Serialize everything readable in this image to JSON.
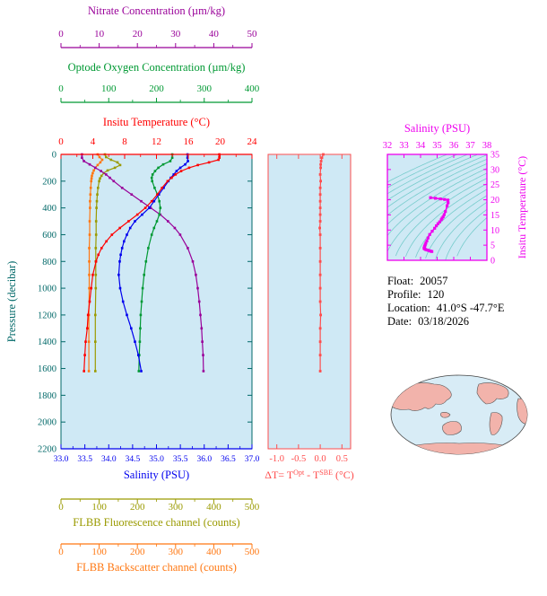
{
  "info": {
    "rows": [
      {
        "label": "Float:",
        "value": "20057"
      },
      {
        "label": "Profile:",
        "value": "120"
      },
      {
        "label": "Location:",
        "value": "41.0°S -47.7°E"
      },
      {
        "label": "Date:",
        "value": "03/18/2026"
      }
    ]
  },
  "colors": {
    "plot_background": "#cfe9f5",
    "pressure_axis": "#006868",
    "nitrate": "#990099",
    "oxygen": "#009933",
    "temperature": "#ff0000",
    "salinity": "#0000ee",
    "fluorescence": "#9a9a00",
    "backscatter": "#ff7711",
    "delta_t": "#ff4d4d",
    "ts_magenta": "#ee00ee",
    "ts_contours": "#77cccc",
    "map_land": "#f2b3ab",
    "map_ocean": "#d8ecf6"
  },
  "chart_data": [
    {
      "id": "main-profiles",
      "type": "line",
      "ylabel": "Pressure (decibar)",
      "ylim": [
        0,
        2200
      ],
      "ytick_values": [
        0,
        200,
        400,
        600,
        800,
        1000,
        1200,
        1400,
        1600,
        1800,
        2000,
        2200
      ],
      "x_axes": [
        {
          "id": "temperature",
          "label": "Insitu Temperature (°C)",
          "lim": [
            0,
            24
          ],
          "tick_values": [
            0,
            4,
            8,
            12,
            16,
            20,
            24
          ],
          "tick_labels": [
            "0",
            "4",
            "8",
            "12",
            "16",
            "20",
            "24"
          ]
        },
        {
          "id": "oxygen",
          "label": "Optode Oxygen Concentration (µm/kg)",
          "lim": [
            0,
            400
          ],
          "tick_values": [
            0,
            100,
            200,
            300,
            400
          ],
          "tick_labels": [
            "0",
            "100",
            "200",
            "300",
            "400"
          ]
        },
        {
          "id": "nitrate",
          "label": "Nitrate Concentration (µm/kg)",
          "lim": [
            0,
            50
          ],
          "tick_values": [
            0,
            10,
            20,
            30,
            40,
            50
          ],
          "tick_labels": [
            "0",
            "10",
            "20",
            "30",
            "40",
            "50"
          ]
        },
        {
          "id": "salinity",
          "label": "Salinity (PSU)",
          "lim": [
            33,
            37
          ],
          "tick_values": [
            33,
            33.5,
            34,
            34.5,
            35,
            35.5,
            36,
            36.5,
            37
          ],
          "tick_labels": [
            "33.0",
            "33.5",
            "34.0",
            "34.5",
            "35.0",
            "35.5",
            "36.0",
            "36.5",
            "37.0"
          ]
        },
        {
          "id": "fluorescence",
          "label": "FLBB Fluorescence channel (counts)",
          "lim": [
            0,
            500
          ],
          "tick_values": [
            0,
            100,
            200,
            300,
            400,
            500
          ],
          "tick_labels": [
            "0",
            "100",
            "200",
            "300",
            "400",
            "500"
          ]
        },
        {
          "id": "backscatter",
          "label": "FLBB Backscatter channel (counts)",
          "lim": [
            0,
            500
          ],
          "tick_values": [
            0,
            100,
            200,
            300,
            400,
            500
          ],
          "tick_labels": [
            "0",
            "100",
            "200",
            "300",
            "400",
            "500"
          ]
        }
      ],
      "series": [
        {
          "axis": "temperature",
          "points": [
            [
              0,
              19.9
            ],
            [
              20,
              19.9
            ],
            [
              40,
              19.8
            ],
            [
              60,
              18.6
            ],
            [
              80,
              17.2
            ],
            [
              100,
              16.1
            ],
            [
              125,
              15.1
            ],
            [
              150,
              14.4
            ],
            [
              175,
              13.9
            ],
            [
              200,
              13.4
            ],
            [
              250,
              12.7
            ],
            [
              300,
              12.1
            ],
            [
              350,
              11.4
            ],
            [
              400,
              10.6
            ],
            [
              450,
              9.6
            ],
            [
              500,
              8.5
            ],
            [
              550,
              7.4
            ],
            [
              600,
              6.4
            ],
            [
              650,
              5.7
            ],
            [
              700,
              5.1
            ],
            [
              750,
              4.7
            ],
            [
              800,
              4.4
            ],
            [
              900,
              4.0
            ],
            [
              1000,
              3.8
            ],
            [
              1100,
              3.6
            ],
            [
              1200,
              3.4
            ],
            [
              1300,
              3.3
            ],
            [
              1400,
              3.1
            ],
            [
              1500,
              3.0
            ],
            [
              1620,
              2.9
            ]
          ]
        },
        {
          "axis": "oxygen",
          "points": [
            [
              0,
              233
            ],
            [
              25,
              233
            ],
            [
              50,
              229
            ],
            [
              75,
              214
            ],
            [
              100,
              204
            ],
            [
              125,
              197
            ],
            [
              150,
              192
            ],
            [
              175,
              190
            ],
            [
              200,
              191
            ],
            [
              250,
              196
            ],
            [
              300,
              202
            ],
            [
              350,
              206
            ],
            [
              400,
              208
            ],
            [
              450,
              206
            ],
            [
              500,
              201
            ],
            [
              550,
              195
            ],
            [
              600,
              190
            ],
            [
              700,
              183
            ],
            [
              800,
              178
            ],
            [
              900,
              174
            ],
            [
              1000,
              171
            ],
            [
              1100,
              169
            ],
            [
              1200,
              167
            ],
            [
              1300,
              166
            ],
            [
              1400,
              165
            ],
            [
              1500,
              164
            ],
            [
              1620,
              163
            ]
          ]
        },
        {
          "axis": "nitrate",
          "points": [
            [
              0,
              5.5
            ],
            [
              25,
              5.5
            ],
            [
              50,
              6.0
            ],
            [
              75,
              7.5
            ],
            [
              100,
              9.0
            ],
            [
              125,
              10.5
            ],
            [
              150,
              11.8
            ],
            [
              175,
              12.8
            ],
            [
              200,
              13.8
            ],
            [
              250,
              16.0
            ],
            [
              300,
              18.5
            ],
            [
              350,
              21.0
            ],
            [
              400,
              23.5
            ],
            [
              450,
              26.0
            ],
            [
              500,
              28.0
            ],
            [
              550,
              29.8
            ],
            [
              600,
              31.2
            ],
            [
              700,
              33.2
            ],
            [
              800,
              34.5
            ],
            [
              900,
              35.3
            ],
            [
              1000,
              35.8
            ],
            [
              1100,
              36.2
            ],
            [
              1200,
              36.5
            ],
            [
              1300,
              36.8
            ],
            [
              1400,
              37.0
            ],
            [
              1500,
              37.2
            ],
            [
              1620,
              37.3
            ]
          ]
        },
        {
          "axis": "salinity",
          "points": [
            [
              0,
              35.65
            ],
            [
              25,
              35.65
            ],
            [
              50,
              35.66
            ],
            [
              75,
              35.6
            ],
            [
              100,
              35.5
            ],
            [
              125,
              35.42
            ],
            [
              150,
              35.36
            ],
            [
              175,
              35.3
            ],
            [
              200,
              35.25
            ],
            [
              250,
              35.15
            ],
            [
              300,
              35.05
            ],
            [
              350,
              34.95
            ],
            [
              400,
              34.85
            ],
            [
              450,
              34.7
            ],
            [
              500,
              34.55
            ],
            [
              550,
              34.45
            ],
            [
              600,
              34.38
            ],
            [
              650,
              34.32
            ],
            [
              700,
              34.28
            ],
            [
              750,
              34.25
            ],
            [
              800,
              34.23
            ],
            [
              900,
              34.21
            ],
            [
              1000,
              34.24
            ],
            [
              1100,
              34.3
            ],
            [
              1200,
              34.38
            ],
            [
              1300,
              34.47
            ],
            [
              1400,
              34.55
            ],
            [
              1500,
              34.62
            ],
            [
              1620,
              34.68
            ]
          ]
        },
        {
          "axis": "fluorescence",
          "points": [
            [
              0,
              115
            ],
            [
              20,
              118
            ],
            [
              40,
              131
            ],
            [
              60,
              148
            ],
            [
              80,
              155
            ],
            [
              100,
              141
            ],
            [
              120,
              122
            ],
            [
              140,
              112
            ],
            [
              160,
              106
            ],
            [
              180,
              102
            ],
            [
              200,
              100
            ],
            [
              250,
              97
            ],
            [
              300,
              95
            ],
            [
              350,
              94
            ],
            [
              400,
              93
            ],
            [
              500,
              92
            ],
            [
              600,
              92
            ],
            [
              700,
              91
            ],
            [
              800,
              91
            ],
            [
              900,
              91
            ],
            [
              1000,
              91
            ],
            [
              1200,
              90
            ],
            [
              1400,
              90
            ],
            [
              1620,
              90
            ]
          ]
        },
        {
          "axis": "backscatter",
          "points": [
            [
              0,
              96
            ],
            [
              20,
              101
            ],
            [
              40,
              108
            ],
            [
              60,
              103
            ],
            [
              80,
              96
            ],
            [
              100,
              90
            ],
            [
              120,
              86
            ],
            [
              140,
              83
            ],
            [
              160,
              81
            ],
            [
              180,
              80
            ],
            [
              200,
              79
            ],
            [
              250,
              78
            ],
            [
              300,
              77
            ],
            [
              350,
              76
            ],
            [
              400,
              76
            ],
            [
              500,
              75
            ],
            [
              600,
              75
            ],
            [
              700,
              74
            ],
            [
              800,
              74
            ],
            [
              900,
              74
            ],
            [
              1000,
              74
            ],
            [
              1200,
              73
            ],
            [
              1400,
              73
            ],
            [
              1620,
              73
            ]
          ]
        }
      ]
    },
    {
      "id": "delta-t",
      "type": "line",
      "xlabel_parts": {
        "prefix": "ΔT= T",
        "sup1": "Opt",
        "mid": " - T",
        "sup2": "SBE",
        "suffix": " (°C)"
      },
      "xlim": [
        -1.2,
        0.7
      ],
      "xtick_values": [
        -1.0,
        -0.5,
        0.0,
        0.5
      ],
      "xtick_labels": [
        "-1.0",
        "-0.5",
        "0.0",
        "0.5"
      ],
      "ylim": [
        0,
        2200
      ],
      "points": [
        [
          0,
          0.07
        ],
        [
          25,
          0.04
        ],
        [
          50,
          0.02
        ],
        [
          75,
          0.01
        ],
        [
          100,
          0.01
        ],
        [
          150,
          0.0
        ],
        [
          200,
          0.01
        ],
        [
          250,
          0.0
        ],
        [
          300,
          0.0
        ],
        [
          350,
          0.0
        ],
        [
          400,
          0.0
        ],
        [
          450,
          0.0
        ],
        [
          500,
          0.0
        ],
        [
          550,
          -0.01
        ],
        [
          600,
          0.0
        ],
        [
          700,
          0.0
        ],
        [
          800,
          0.0
        ],
        [
          900,
          0.0
        ],
        [
          1000,
          0.0
        ],
        [
          1100,
          0.0
        ],
        [
          1200,
          0.01
        ],
        [
          1300,
          0.0
        ],
        [
          1400,
          0.0
        ],
        [
          1500,
          0.0
        ],
        [
          1620,
          0.0
        ]
      ]
    },
    {
      "id": "ts-diagram",
      "type": "scatter",
      "title": "Salinity (PSU)",
      "ylabel": "Insitu Temperature (°C)",
      "xlim": [
        32,
        38
      ],
      "xtick_values": [
        32,
        33,
        34,
        35,
        36,
        37,
        38
      ],
      "xtick_labels": [
        "32",
        "33",
        "34",
        "35",
        "36",
        "37",
        "38"
      ],
      "ylim": [
        0,
        35
      ],
      "ytick_values": [
        0,
        5,
        10,
        15,
        20,
        25,
        30,
        35
      ],
      "ytick_labels": [
        "0",
        "5",
        "10",
        "15",
        "20",
        "25",
        "30",
        "35"
      ],
      "contour_levels": [
        21.5,
        22,
        22.5,
        23,
        23.5,
        24,
        24.5,
        25,
        25.5,
        26,
        26.5,
        27,
        27.5,
        28,
        28.5,
        29
      ],
      "points": [
        [
          34.6,
          20.7
        ],
        [
          34.9,
          20.5
        ],
        [
          35.2,
          20.3
        ],
        [
          35.45,
          20.1
        ],
        [
          35.65,
          19.9
        ],
        [
          35.66,
          19.0
        ],
        [
          35.6,
          18.0
        ],
        [
          35.5,
          16.1
        ],
        [
          35.42,
          15.1
        ],
        [
          35.36,
          14.4
        ],
        [
          35.3,
          13.9
        ],
        [
          35.25,
          13.4
        ],
        [
          35.15,
          12.7
        ],
        [
          35.05,
          12.1
        ],
        [
          34.95,
          11.4
        ],
        [
          34.85,
          10.6
        ],
        [
          34.7,
          9.6
        ],
        [
          34.55,
          8.5
        ],
        [
          34.45,
          7.4
        ],
        [
          34.38,
          6.4
        ],
        [
          34.32,
          5.7
        ],
        [
          34.28,
          5.1
        ],
        [
          34.25,
          4.7
        ],
        [
          34.23,
          4.4
        ],
        [
          34.21,
          4.0
        ],
        [
          34.24,
          3.8
        ],
        [
          34.3,
          3.6
        ],
        [
          34.38,
          3.4
        ],
        [
          34.47,
          3.3
        ],
        [
          34.55,
          3.1
        ],
        [
          34.62,
          3.0
        ],
        [
          34.68,
          2.9
        ]
      ]
    }
  ]
}
